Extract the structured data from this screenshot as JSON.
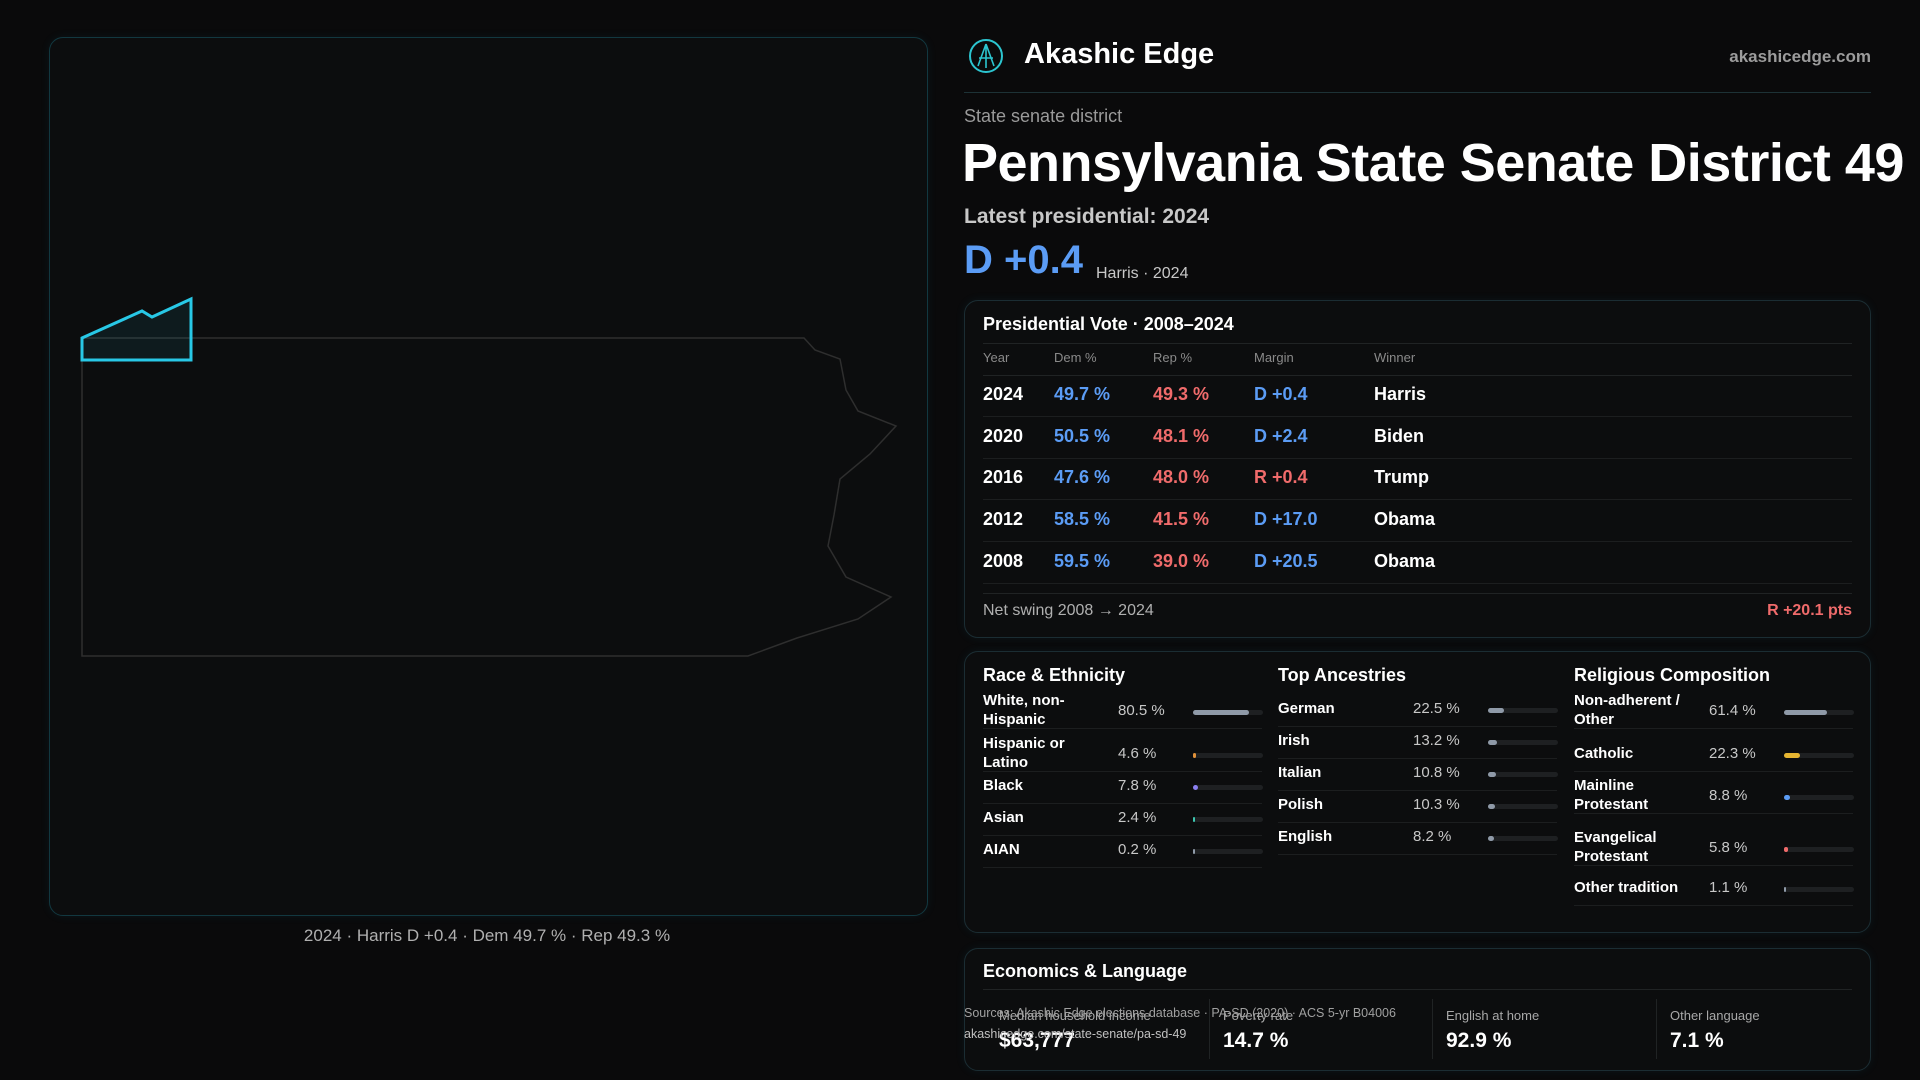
{
  "header": {
    "brand": "Akashic Edge",
    "site": "akashicedge.com"
  },
  "map": {
    "caption": "2024 · Harris D +0.4 · Dem 49.7 % · Rep 49.3 %"
  },
  "district": {
    "kind": "State senate district",
    "title": "Pennsylvania State Senate District 49",
    "latest": "Latest presidential: 2024",
    "margin": "D +0.4",
    "margin_color": "#5b9cf5",
    "margin_note": "Harris · 2024"
  },
  "vote_table": {
    "title": "Presidential Vote · 2008–2024",
    "columns": [
      "Year",
      "Dem %",
      "Rep %",
      "Margin",
      "Winner"
    ],
    "rows": [
      {
        "year": "2024",
        "dem": "49.7 %",
        "rep": "49.3 %",
        "margin": "D +0.4",
        "winner": "Harris",
        "margin_color": "#5b9cf5"
      },
      {
        "year": "2020",
        "dem": "50.5 %",
        "rep": "48.1 %",
        "margin": "D +2.4",
        "winner": "Biden",
        "margin_color": "#5b9cf5"
      },
      {
        "year": "2016",
        "dem": "47.6 %",
        "rep": "48.0 %",
        "margin": "R +0.4",
        "winner": "Trump",
        "margin_color": "#f06b6b"
      },
      {
        "year": "2012",
        "dem": "58.5 %",
        "rep": "41.5 %",
        "margin": "D +17.0",
        "winner": "Obama",
        "margin_color": "#5b9cf5"
      },
      {
        "year": "2008",
        "dem": "59.5 %",
        "rep": "39.0 %",
        "margin": "D +20.5",
        "winner": "Obama",
        "margin_color": "#5b9cf5"
      }
    ],
    "swing_label": "Net swing 2008 → 2024",
    "swing_value": "R +20.1 pts"
  },
  "demographics": [
    {
      "title": "Race & Ethnicity",
      "rows": [
        {
          "name": "White, non-Hispanic",
          "value": 80.5,
          "label": "80.5 %",
          "color": "#8f9aa8"
        },
        {
          "name": "Hispanic or Latino",
          "value": 4.6,
          "label": "4.6 %",
          "color": "#e0913a"
        },
        {
          "name": "Black",
          "value": 7.8,
          "label": "7.8 %",
          "color": "#8a7ff0"
        },
        {
          "name": "Asian",
          "value": 2.4,
          "label": "2.4 %",
          "color": "#3cc6b0"
        },
        {
          "name": "AIAN",
          "value": 0.2,
          "label": "0.2 %",
          "color": "#8f9aa8"
        }
      ]
    },
    {
      "title": "Top Ancestries",
      "rows": [
        {
          "name": "German",
          "value": 22.5,
          "label": "22.5 %",
          "color": "#8f9aa8"
        },
        {
          "name": "Irish",
          "value": 13.2,
          "label": "13.2 %",
          "color": "#8f9aa8"
        },
        {
          "name": "Italian",
          "value": 10.8,
          "label": "10.8 %",
          "color": "#8f9aa8"
        },
        {
          "name": "Polish",
          "value": 10.3,
          "label": "10.3 %",
          "color": "#8f9aa8"
        },
        {
          "name": "English",
          "value": 8.2,
          "label": "8.2 %",
          "color": "#8f9aa8"
        }
      ]
    },
    {
      "title": "Religious Composition",
      "rows": [
        {
          "name": "Non-adherent / Other",
          "value": 61.4,
          "label": "61.4 %",
          "color": "#8f9aa8"
        },
        {
          "name": "Catholic",
          "value": 22.3,
          "label": "22.3 %",
          "color": "#e6b531"
        },
        {
          "name": "Mainline Protestant",
          "value": 8.8,
          "label": "8.8 %",
          "color": "#5b9cf5"
        },
        {
          "name": "Evangelical Protestant",
          "value": 5.8,
          "label": "5.8 %",
          "color": "#f06b6b"
        },
        {
          "name": "Other tradition",
          "value": 1.1,
          "label": "1.1 %",
          "color": "#8f9aa8"
        }
      ]
    }
  ],
  "economics": {
    "title": "Economics & Language",
    "items": [
      {
        "label": "Median household income",
        "value": "$63,777"
      },
      {
        "label": "Poverty rate",
        "value": "14.7 %"
      },
      {
        "label": "English at home",
        "value": "92.9 %"
      },
      {
        "label": "Other language",
        "value": "7.1 %"
      }
    ]
  },
  "sources": [
    "Sources: Akashic Edge elections database · PA-SD (2020) · ACS 5-yr B04006",
    "akashicedge.com/state-senate/pa-sd-49"
  ]
}
